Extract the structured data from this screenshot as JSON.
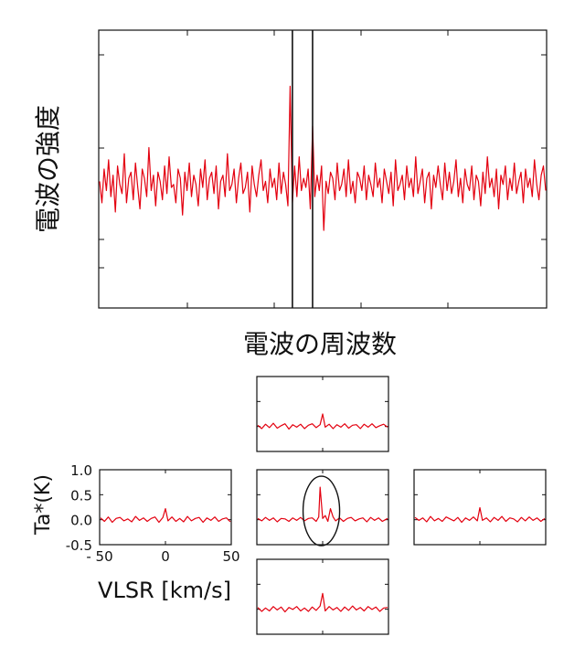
{
  "chart_data": [
    {
      "type": "line",
      "ylabel": "電波の強度",
      "xlabel": "電波の周波数",
      "x": [
        0,
        1,
        2,
        3,
        4,
        5,
        6,
        7,
        8,
        9,
        10,
        11,
        12,
        13,
        14,
        15,
        16,
        17,
        18,
        19,
        20,
        21,
        22,
        23,
        24,
        25,
        26,
        27,
        28,
        29,
        30,
        31,
        32,
        33,
        34,
        35,
        36,
        37,
        38,
        39,
        40,
        41,
        42,
        43,
        44,
        45,
        46,
        47,
        48,
        49,
        50,
        51,
        52,
        53,
        54,
        55,
        56,
        57,
        58,
        59,
        60,
        61,
        62,
        63,
        64,
        65,
        66,
        67,
        68,
        69,
        70,
        71,
        72,
        73,
        74,
        75,
        76,
        77,
        78,
        79,
        80,
        81,
        82,
        83,
        84,
        85,
        86,
        87,
        88,
        89,
        90,
        91,
        92,
        93,
        94,
        95,
        96,
        97,
        98,
        99,
        100,
        101,
        102,
        103,
        104,
        105,
        106,
        107,
        108,
        109,
        110,
        111,
        112,
        113,
        114,
        115,
        116,
        117,
        118,
        119,
        120,
        121,
        122,
        123,
        124,
        125,
        126,
        127,
        128,
        129,
        130,
        131,
        132,
        133,
        134,
        135,
        136,
        137,
        138,
        139,
        140,
        141,
        142,
        143,
        144,
        145,
        146,
        147,
        148,
        149,
        150,
        151,
        152,
        153,
        154,
        155,
        156,
        157,
        158,
        159,
        160,
        161,
        162,
        163,
        164,
        165,
        166,
        167,
        168,
        169,
        170,
        171,
        172,
        173,
        174,
        175,
        176,
        177,
        178,
        179,
        180,
        181,
        182,
        183,
        184,
        185,
        186,
        187,
        188,
        189,
        190,
        191,
        192,
        193,
        194,
        195,
        196,
        197,
        198,
        199
      ],
      "series": [
        {
          "color": "#e3000f",
          "values": [
            0.05,
            -0.3,
            0.25,
            -0.1,
            0.4,
            -0.2,
            0.15,
            -0.45,
            0.3,
            0.0,
            -0.15,
            0.5,
            -0.3,
            0.1,
            0.2,
            -0.25,
            0.35,
            -0.05,
            -0.4,
            0.25,
            0.1,
            -0.2,
            0.6,
            -0.1,
            0.15,
            -0.35,
            0.2,
            0.05,
            -0.25,
            0.3,
            -0.15,
            0.45,
            -0.05,
            0.0,
            -0.3,
            0.25,
            0.1,
            -0.5,
            0.2,
            -0.1,
            0.35,
            -0.2,
            0.15,
            0.0,
            -0.35,
            0.25,
            -0.05,
            0.4,
            -0.25,
            0.1,
            0.2,
            -0.15,
            0.3,
            -0.4,
            0.05,
            0.15,
            -0.2,
            0.5,
            -0.1,
            0.0,
            0.25,
            -0.3,
            0.1,
            0.35,
            -0.15,
            -0.05,
            0.2,
            -0.45,
            0.3,
            0.0,
            -0.2,
            0.15,
            0.4,
            -0.1,
            0.05,
            -0.3,
            0.25,
            -0.05,
            0.1,
            -0.25,
            0.35,
            -0.15,
            0.2,
            0.0,
            -0.35,
            1.6,
            -0.3,
            0.3,
            -0.2,
            0.45,
            -0.1,
            0.1,
            -0.05,
            0.25,
            -0.4,
            0.95,
            -0.2,
            0.15,
            -0.1,
            0.3,
            -0.75,
            0.05,
            -0.15,
            0.2,
            0.1,
            -0.25,
            0.35,
            -0.1,
            0.0,
            0.25,
            -0.2,
            0.4,
            -0.15,
            0.05,
            -0.3,
            0.2,
            0.1,
            -0.1,
            0.3,
            -0.25,
            0.15,
            0.0,
            -0.2,
            0.35,
            -0.05,
            0.1,
            -0.3,
            0.25,
            0.05,
            -0.15,
            0.2,
            -0.35,
            0.4,
            -0.1,
            0.0,
            0.15,
            -0.25,
            0.3,
            -0.05,
            0.1,
            -0.2,
            0.45,
            -0.15,
            0.05,
            0.25,
            -0.3,
            0.1,
            0.2,
            -0.4,
            0.15,
            -0.05,
            0.3,
            0.0,
            -0.25,
            0.35,
            -0.1,
            0.2,
            -0.15,
            0.05,
            0.4,
            -0.2,
            0.1,
            -0.3,
            0.25,
            0.0,
            -0.1,
            0.3,
            -0.25,
            0.15,
            0.05,
            -0.35,
            0.2,
            -0.15,
            0.45,
            -0.05,
            0.1,
            -0.2,
            0.25,
            -0.4,
            0.15,
            0.0,
            0.3,
            -0.25,
            0.1,
            -0.1,
            0.35,
            -0.15,
            0.05,
            0.2,
            -0.3,
            0.25,
            -0.05,
            0.1,
            -0.2,
            0.4,
            0.0,
            -0.25,
            0.15,
            0.3,
            -0.1
          ]
        }
      ],
      "xlim": [
        0,
        199
      ],
      "ylim": [
        -2.0,
        2.5
      ],
      "markers": [
        86,
        95
      ],
      "grid": false
    },
    {
      "type": "line",
      "position_label": "top",
      "x": [
        -50,
        -47,
        -44,
        -41,
        -38,
        -35,
        -32,
        -29,
        -26,
        -23,
        -20,
        -17,
        -14,
        -11,
        -8,
        -5,
        -2,
        0,
        2,
        5,
        8,
        11,
        14,
        17,
        20,
        23,
        26,
        29,
        32,
        35,
        38,
        41,
        44,
        47,
        50
      ],
      "series": [
        {
          "color": "#e3000f",
          "values": [
            0.02,
            -0.05,
            0.04,
            -0.03,
            0.06,
            -0.04,
            0.01,
            0.05,
            -0.06,
            0.03,
            -0.02,
            0.04,
            -0.05,
            0.02,
            0.05,
            -0.03,
            0.03,
            0.25,
            -0.02,
            0.04,
            -0.05,
            0.03,
            -0.02,
            0.05,
            -0.04,
            0.02,
            0.03,
            -0.05,
            0.04,
            -0.02,
            0.05,
            -0.03,
            0.01,
            0.04,
            -0.02
          ]
        }
      ],
      "xlim": [
        -50,
        50
      ],
      "ylim": [
        -0.5,
        1.0
      ]
    },
    {
      "type": "line",
      "position_label": "left",
      "ylabel": "Ta*(K)",
      "xlabel": "VLSR [km/s]",
      "yticks": [
        "1.0",
        "0.5",
        "0.0",
        "-0.5"
      ],
      "xticks": [
        "- 50",
        "0",
        "50"
      ],
      "x": [
        -50,
        -47,
        -44,
        -41,
        -38,
        -35,
        -32,
        -29,
        -26,
        -23,
        -20,
        -17,
        -14,
        -11,
        -8,
        -5,
        -2,
        0,
        2,
        5,
        8,
        11,
        14,
        17,
        20,
        23,
        26,
        29,
        32,
        35,
        38,
        41,
        44,
        47,
        50
      ],
      "series": [
        {
          "color": "#e3000f",
          "values": [
            0.03,
            -0.04,
            0.05,
            -0.06,
            0.02,
            0.04,
            -0.03,
            0.01,
            -0.05,
            0.06,
            -0.02,
            0.03,
            -0.04,
            0.02,
            0.05,
            -0.06,
            0.04,
            0.22,
            -0.03,
            0.05,
            -0.04,
            0.02,
            -0.05,
            0.06,
            -0.03,
            0.02,
            0.04,
            -0.06,
            0.03,
            -0.02,
            0.05,
            -0.04,
            0.01,
            0.03,
            -0.05
          ]
        }
      ],
      "xlim": [
        -50,
        50
      ],
      "ylim": [
        -0.5,
        1.0
      ]
    },
    {
      "type": "line",
      "position_label": "center",
      "x": [
        -50,
        -47,
        -44,
        -41,
        -38,
        -35,
        -32,
        -29,
        -26,
        -23,
        -20,
        -17,
        -14,
        -11,
        -8,
        -5,
        -3,
        -2,
        0,
        2,
        4,
        6,
        8,
        10,
        13,
        16,
        19,
        22,
        25,
        28,
        31,
        34,
        37,
        40,
        43,
        46,
        50
      ],
      "series": [
        {
          "color": "#e3000f",
          "values": [
            0.02,
            -0.03,
            0.04,
            -0.02,
            0.03,
            -0.05,
            0.02,
            0.01,
            -0.04,
            0.03,
            -0.02,
            0.04,
            -0.03,
            0.02,
            0.03,
            -0.04,
            0.05,
            0.66,
            0.02,
            0.08,
            -0.04,
            0.22,
            0.05,
            -0.03,
            0.03,
            -0.04,
            0.02,
            0.04,
            -0.03,
            0.01,
            0.03,
            -0.05,
            0.04,
            -0.02,
            0.03,
            -0.04,
            0.02
          ]
        }
      ],
      "xlim": [
        -50,
        50
      ],
      "ylim": [
        -0.5,
        1.0
      ],
      "highlight": "ellipse"
    },
    {
      "type": "line",
      "position_label": "right",
      "x": [
        -50,
        -47,
        -44,
        -41,
        -38,
        -35,
        -32,
        -29,
        -26,
        -23,
        -20,
        -17,
        -14,
        -11,
        -8,
        -5,
        -2,
        0,
        2,
        5,
        8,
        11,
        14,
        17,
        20,
        23,
        26,
        29,
        32,
        35,
        38,
        41,
        44,
        47,
        50
      ],
      "series": [
        {
          "color": "#e3000f",
          "values": [
            0.04,
            -0.02,
            0.03,
            -0.05,
            0.06,
            -0.03,
            0.02,
            -0.04,
            0.05,
            0.01,
            -0.03,
            0.04,
            -0.06,
            0.03,
            -0.02,
            0.05,
            -0.03,
            0.24,
            -0.02,
            0.03,
            -0.05,
            0.04,
            -0.02,
            0.06,
            -0.04,
            0.03,
            0.01,
            -0.05,
            0.04,
            -0.03,
            0.05,
            -0.02,
            0.03,
            -0.04,
            0.02
          ]
        }
      ],
      "xlim": [
        -50,
        50
      ],
      "ylim": [
        -0.5,
        1.0
      ]
    },
    {
      "type": "line",
      "position_label": "bottom",
      "x": [
        -50,
        -47,
        -44,
        -41,
        -38,
        -35,
        -32,
        -29,
        -26,
        -23,
        -20,
        -17,
        -14,
        -11,
        -8,
        -5,
        -2,
        0,
        2,
        5,
        8,
        11,
        14,
        17,
        20,
        23,
        26,
        29,
        32,
        35,
        38,
        41,
        44,
        47,
        50
      ],
      "series": [
        {
          "color": "#e3000f",
          "values": [
            0.03,
            -0.05,
            0.02,
            -0.04,
            0.05,
            -0.02,
            0.04,
            -0.06,
            0.03,
            -0.01,
            0.05,
            -0.04,
            0.02,
            -0.05,
            0.04,
            -0.03,
            0.06,
            0.32,
            -0.04,
            0.05,
            -0.02,
            0.03,
            -0.05,
            0.04,
            -0.03,
            0.06,
            -0.02,
            0.03,
            -0.04,
            0.05,
            -0.01,
            0.04,
            -0.05,
            0.02,
            0.03
          ]
        }
      ],
      "xlim": [
        -50,
        50
      ],
      "ylim": [
        -0.5,
        1.0
      ]
    }
  ]
}
